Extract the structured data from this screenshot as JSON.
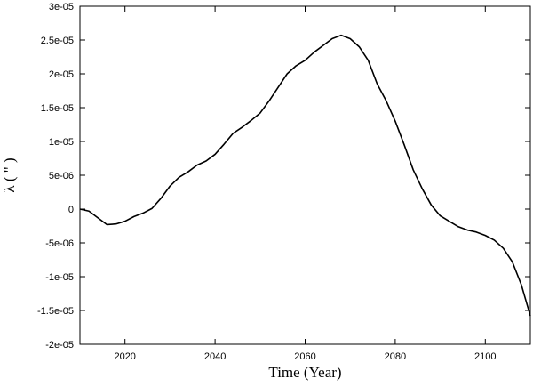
{
  "chart_data": {
    "type": "line",
    "xlabel": "Time (Year)",
    "ylabel": "λ ( \" )",
    "xlim": [
      2010,
      2110
    ],
    "ylim": [
      -2e-05,
      3e-05
    ],
    "x_ticks": [
      2020,
      2040,
      2060,
      2080,
      2100
    ],
    "x_tick_labels": [
      "2020",
      "2040",
      "2060",
      "2080",
      "2100"
    ],
    "y_ticks": [
      -2e-05,
      -1.5e-05,
      -1e-05,
      -5e-06,
      0,
      5e-06,
      1e-05,
      1.5e-05,
      2e-05,
      2.5e-05,
      3e-05
    ],
    "y_tick_labels": [
      "-2e-05",
      "-1.5e-05",
      "-1e-05",
      "-5e-06",
      "0",
      "5e-06",
      "1e-05",
      "1.5e-05",
      "2e-05",
      "2.5e-05",
      "3e-05"
    ],
    "grid": false,
    "line_color": "#000000",
    "series": [
      {
        "x": [
          2010,
          2012,
          2014,
          2016,
          2018,
          2020,
          2022,
          2024,
          2026,
          2028,
          2030,
          2032,
          2034,
          2036,
          2038,
          2040,
          2042,
          2044,
          2046,
          2048,
          2050,
          2052,
          2054,
          2056,
          2058,
          2060,
          2062,
          2064,
          2066,
          2068,
          2070,
          2072,
          2074,
          2076,
          2078,
          2080,
          2082,
          2084,
          2086,
          2088,
          2090,
          2092,
          2094,
          2096,
          2098,
          2100,
          2102,
          2104,
          2106,
          2108,
          2110
        ],
        "y": [
          0,
          -3e-07,
          -1.3e-06,
          -2.3e-06,
          -2.2e-06,
          -1.8e-06,
          -1.1e-06,
          -6e-07,
          1e-07,
          1.6e-06,
          3.4e-06,
          4.7e-06,
          5.5e-06,
          6.5e-06,
          7.1e-06,
          8.1e-06,
          9.6e-06,
          1.12e-05,
          1.21e-05,
          1.31e-05,
          1.42e-05,
          1.6e-05,
          1.8e-05,
          2e-05,
          2.12e-05,
          2.2e-05,
          2.32e-05,
          2.42e-05,
          2.52e-05,
          2.57e-05,
          2.52e-05,
          2.4e-05,
          2.2e-05,
          1.85e-05,
          1.6e-05,
          1.3e-05,
          9.5e-06,
          5.8e-06,
          3e-06,
          6e-07,
          -1e-06,
          -1.8e-06,
          -2.6e-06,
          -3.1e-06,
          -3.4e-06,
          -3.9e-06,
          -4.6e-06,
          -5.8e-06,
          -7.8e-06,
          -1.12e-05,
          -1.58e-05
        ]
      }
    ]
  }
}
